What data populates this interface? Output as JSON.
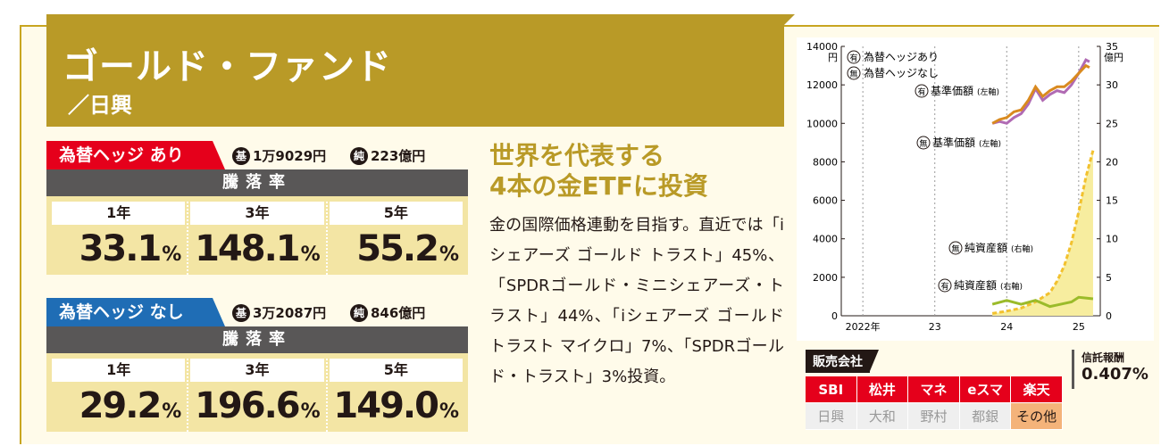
{
  "fund": {
    "name": "ゴールド・ファンド",
    "company": "／日興"
  },
  "hedge_on": {
    "tag": "為替ヘッジ あり",
    "nav_badge": "基",
    "nav": "1万9029円",
    "net_badge": "純",
    "net_assets": "223億円",
    "rate_header": "騰落率",
    "rates": [
      {
        "period": "1年",
        "value": "33.1",
        "unit": "%"
      },
      {
        "period": "3年",
        "value": "148.1",
        "unit": "%"
      },
      {
        "period": "5年",
        "value": "55.2",
        "unit": "%"
      }
    ]
  },
  "hedge_off": {
    "tag": "為替ヘッジ なし",
    "nav_badge": "基",
    "nav": "3万2087円",
    "net_badge": "純",
    "net_assets": "846億円",
    "rate_header": "騰落率",
    "rates": [
      {
        "period": "1年",
        "value": "29.2",
        "unit": "%"
      },
      {
        "period": "3年",
        "value": "196.6",
        "unit": "%"
      },
      {
        "period": "5年",
        "value": "149.0",
        "unit": "%"
      }
    ]
  },
  "headline": [
    "世界を代表する",
    "4本の金ETFに投資"
  ],
  "body": "金の国際価格連動を目指す。直近では「iシェアーズ ゴールド トラスト」45%、「SPDRゴールド・ミニシェアーズ・トラスト」44%、「iシェアーズ ゴールド トラスト マイクロ」7%、「SPDRゴールド・トラスト」3%投資。",
  "chart_data": {
    "type": "line",
    "left_axis": {
      "ticks": [
        "0",
        "2000",
        "4000",
        "6000",
        "8000",
        "10000",
        "12000",
        "14000"
      ],
      "unit": "円",
      "ylim": [
        0,
        14000
      ]
    },
    "right_axis": {
      "ticks": [
        "0",
        "5",
        "10",
        "15",
        "20",
        "25",
        "30",
        "35"
      ],
      "unit": "億円",
      "ylim": [
        0,
        35
      ]
    },
    "x_ticks": [
      "2022年",
      "23",
      "24",
      "25"
    ],
    "legend": [
      {
        "badge": "有",
        "label": "為替ヘッジあり",
        "color": "#9b59b6"
      },
      {
        "badge": "無",
        "label": "為替ヘッジなし",
        "color": "#e0861a"
      }
    ],
    "annotations": [
      {
        "badge": "有",
        "label": "基準価額",
        "axis": "(左軸)"
      },
      {
        "badge": "無",
        "label": "基準価額",
        "axis": "(左軸)"
      },
      {
        "badge": "無",
        "label": "純資産額",
        "axis": "(右軸)"
      },
      {
        "badge": "有",
        "label": "純資産額",
        "axis": "(右軸)"
      }
    ],
    "series": [
      {
        "name": "有 基準価額",
        "axis": "left",
        "color": "#b06ab3",
        "x": [
          23.8,
          23.9,
          24.0,
          24.1,
          24.2,
          24.3,
          24.4,
          24.5,
          24.6,
          24.7,
          24.8,
          24.9,
          25.0,
          25.1,
          25.15
        ],
        "y": [
          10000,
          10100,
          10000,
          10300,
          10500,
          11000,
          11800,
          11200,
          11500,
          11700,
          11600,
          12000,
          12600,
          13300,
          13200
        ]
      },
      {
        "name": "無 基準価額",
        "axis": "left",
        "color": "#d98a1f",
        "x": [
          23.8,
          23.9,
          24.0,
          24.1,
          24.2,
          24.3,
          24.4,
          24.5,
          24.6,
          24.7,
          24.8,
          24.9,
          25.0,
          25.1,
          25.15
        ],
        "y": [
          10000,
          10200,
          10300,
          10600,
          10700,
          11200,
          11900,
          11400,
          11700,
          11900,
          11900,
          12200,
          12600,
          13000,
          12900
        ]
      },
      {
        "name": "無 純資産額",
        "axis": "right",
        "color": "#f2c12e",
        "x": [
          23.8,
          24.0,
          24.2,
          24.4,
          24.6,
          24.7,
          24.8,
          24.9,
          25.0,
          25.1,
          25.2
        ],
        "y": [
          0.3,
          0.6,
          1.0,
          1.8,
          3.0,
          4.5,
          6.5,
          9.5,
          13.5,
          18.0,
          21.5
        ]
      },
      {
        "name": "有 純資産額",
        "axis": "right",
        "color": "#9bbb2a",
        "x": [
          23.8,
          24.0,
          24.2,
          24.4,
          24.6,
          24.7,
          24.8,
          24.9,
          25.0,
          25.1,
          25.2
        ],
        "y": [
          1.5,
          2.0,
          1.5,
          2.0,
          1.2,
          1.4,
          1.6,
          1.8,
          2.4,
          2.3,
          2.2
        ]
      }
    ]
  },
  "sales": {
    "title": "販売会社",
    "rows": [
      [
        {
          "label": "SBI",
          "on": true
        },
        {
          "label": "松井",
          "on": true
        },
        {
          "label": "マネ",
          "on": true
        },
        {
          "label": "eスマ",
          "on": true
        },
        {
          "label": "楽天",
          "on": true
        }
      ],
      [
        {
          "label": "日興",
          "on": false
        },
        {
          "label": "大和",
          "on": false
        },
        {
          "label": "野村",
          "on": false
        },
        {
          "label": "都銀",
          "on": false
        },
        {
          "label": "その他",
          "on": "other"
        }
      ]
    ]
  },
  "fee": {
    "label": "信託報酬",
    "value": "0.407%"
  },
  "colors": {
    "gold": "#b99a27",
    "red": "#e5001b",
    "blue": "#1f6db5",
    "dark": "#595757"
  }
}
